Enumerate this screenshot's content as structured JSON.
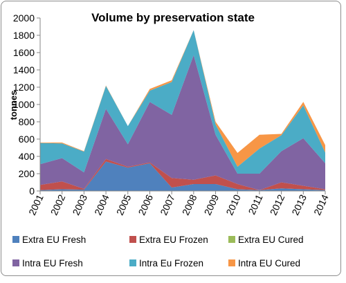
{
  "chart_data": {
    "type": "area",
    "stacked": true,
    "title": "Volume by preservation state",
    "xlabel": "",
    "ylabel": "tonnes",
    "ylim": [
      0,
      2000
    ],
    "yticks": [
      0,
      200,
      400,
      600,
      800,
      1000,
      1200,
      1400,
      1600,
      1800,
      2000
    ],
    "grid": false,
    "legend_position": "bottom",
    "x": [
      "2001",
      "2002",
      "2003",
      "2004",
      "2005",
      "2006",
      "2007",
      "2008",
      "2009",
      "2010",
      "2011",
      "2012",
      "2013",
      "2014"
    ],
    "series": [
      {
        "name": "Extra EU Fresh",
        "color": "#4f81bd",
        "values": [
          10,
          20,
          15,
          340,
          270,
          320,
          40,
          80,
          80,
          20,
          10,
          30,
          20,
          10
        ]
      },
      {
        "name": "Extra EU Frozen",
        "color": "#c0504d",
        "values": [
          60,
          90,
          10,
          30,
          10,
          10,
          110,
          50,
          100,
          60,
          0,
          70,
          40,
          10
        ]
      },
      {
        "name": "Extra EU Cured",
        "color": "#9bbb59",
        "values": [
          0,
          0,
          0,
          0,
          0,
          0,
          0,
          0,
          0,
          0,
          0,
          0,
          0,
          0
        ]
      },
      {
        "name": "Intra EU Fresh",
        "color": "#8064a2",
        "values": [
          240,
          270,
          190,
          580,
          260,
          700,
          730,
          1440,
          470,
          120,
          190,
          360,
          550,
          300
        ]
      },
      {
        "name": "Intra Eu Frozen",
        "color": "#4bacc6",
        "values": [
          245,
          170,
          240,
          265,
          210,
          130,
          380,
          290,
          120,
          80,
          290,
          185,
          380,
          125
        ]
      },
      {
        "name": "Intra EU Cured",
        "color": "#f79646",
        "values": [
          5,
          10,
          5,
          5,
          0,
          20,
          20,
          0,
          30,
          160,
          160,
          15,
          40,
          85
        ]
      }
    ]
  }
}
